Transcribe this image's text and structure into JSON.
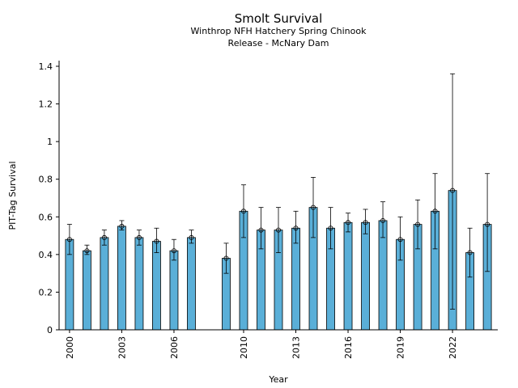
{
  "chart_data": {
    "type": "bar",
    "title": "Smolt Survival",
    "subtitle_lines": [
      "Winthrop NFH Hatchery Spring Chinook",
      "Release - McNary Dam"
    ],
    "xlabel": "Year",
    "ylabel": "PIT-Tag Survival",
    "ylim": [
      0,
      1.43
    ],
    "yticks": [
      0,
      0.2,
      0.4,
      0.6,
      0.8,
      1,
      1.2,
      1.4
    ],
    "ytick_labels": [
      "0",
      "0.2",
      "0.4",
      "0.6",
      "0.8",
      "1",
      "1.2",
      "1.4"
    ],
    "xlim": [
      1999.4,
      2024.6
    ],
    "xticks": [
      2000,
      2003,
      2006,
      2010,
      2013,
      2016,
      2019,
      2022
    ],
    "xtick_labels": [
      "2000",
      "2003",
      "2006",
      "2010",
      "2013",
      "2016",
      "2019",
      "2022"
    ],
    "grid": false,
    "bar_color": "#5aafd8",
    "points": [
      {
        "year": 2000,
        "value": 0.48,
        "lower": 0.4,
        "upper": 0.56
      },
      {
        "year": 2001,
        "value": 0.42,
        "lower": 0.4,
        "upper": 0.45
      },
      {
        "year": 2002,
        "value": 0.49,
        "lower": 0.45,
        "upper": 0.53
      },
      {
        "year": 2003,
        "value": 0.55,
        "lower": 0.53,
        "upper": 0.58
      },
      {
        "year": 2004,
        "value": 0.49,
        "lower": 0.45,
        "upper": 0.53
      },
      {
        "year": 2005,
        "value": 0.47,
        "lower": 0.41,
        "upper": 0.54
      },
      {
        "year": 2006,
        "value": 0.42,
        "lower": 0.37,
        "upper": 0.48
      },
      {
        "year": 2007,
        "value": 0.49,
        "lower": 0.46,
        "upper": 0.53
      },
      {
        "year": 2009,
        "value": 0.38,
        "lower": 0.3,
        "upper": 0.46
      },
      {
        "year": 2010,
        "value": 0.63,
        "lower": 0.49,
        "upper": 0.77
      },
      {
        "year": 2011,
        "value": 0.53,
        "lower": 0.43,
        "upper": 0.65
      },
      {
        "year": 2012,
        "value": 0.53,
        "lower": 0.41,
        "upper": 0.65
      },
      {
        "year": 2013,
        "value": 0.54,
        "lower": 0.46,
        "upper": 0.63
      },
      {
        "year": 2014,
        "value": 0.65,
        "lower": 0.49,
        "upper": 0.81
      },
      {
        "year": 2015,
        "value": 0.54,
        "lower": 0.43,
        "upper": 0.65
      },
      {
        "year": 2016,
        "value": 0.57,
        "lower": 0.52,
        "upper": 0.62
      },
      {
        "year": 2017,
        "value": 0.57,
        "lower": 0.51,
        "upper": 0.64
      },
      {
        "year": 2018,
        "value": 0.58,
        "lower": 0.49,
        "upper": 0.68
      },
      {
        "year": 2019,
        "value": 0.48,
        "lower": 0.37,
        "upper": 0.6
      },
      {
        "year": 2020,
        "value": 0.56,
        "lower": 0.43,
        "upper": 0.69
      },
      {
        "year": 2021,
        "value": 0.63,
        "lower": 0.43,
        "upper": 0.83
      },
      {
        "year": 2022,
        "value": 0.74,
        "lower": 0.11,
        "upper": 1.36
      },
      {
        "year": 2023,
        "value": 0.41,
        "lower": 0.28,
        "upper": 0.54
      },
      {
        "year": 2024,
        "value": 0.56,
        "lower": 0.31,
        "upper": 0.83
      }
    ]
  }
}
